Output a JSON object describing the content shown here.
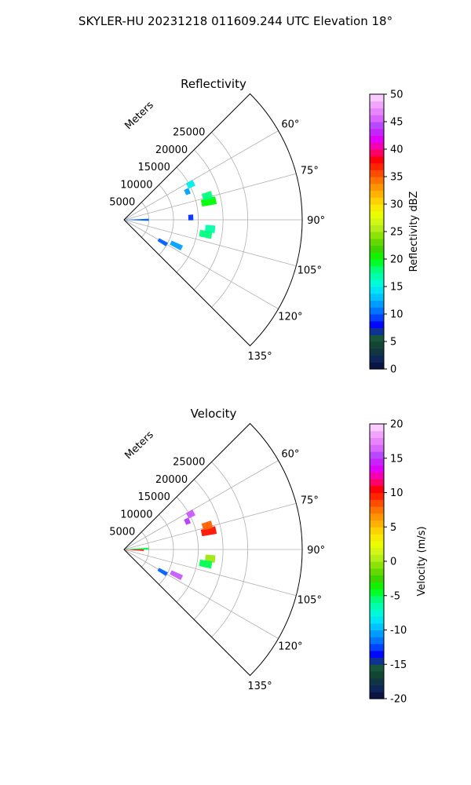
{
  "suptitle": "SKYLER-HU  20231218  011609.244 UTC Elevation 18°",
  "chart_data": [
    {
      "type": "polar-sector",
      "title": "Reflectivity",
      "radial_label": "Meters",
      "r_ticks": [
        "5000",
        "10000",
        "15000",
        "20000",
        "25000"
      ],
      "r_tick_values": [
        5000,
        10000,
        15000,
        20000,
        25000
      ],
      "rlim": [
        0,
        36000
      ],
      "theta_ticks": [
        "60°",
        "75°",
        "90°",
        "105°",
        "120°",
        "135°"
      ],
      "theta_tick_values": [
        60,
        75,
        90,
        105,
        120,
        135
      ],
      "thetalim": [
        45,
        135
      ],
      "grid": true,
      "colorbar": {
        "label": "Reflectivity dBZ",
        "ticks": [
          "0",
          "5",
          "10",
          "15",
          "20",
          "25",
          "30",
          "35",
          "40",
          "45",
          "50"
        ],
        "range": [
          0,
          50
        ]
      },
      "echoes": [
        {
          "az": 90,
          "r0": 0,
          "r1": 5000,
          "value": 10
        },
        {
          "az": 62,
          "r0": 14500,
          "r1": 16000,
          "value": 15
        },
        {
          "az": 66,
          "r0": 13500,
          "r1": 14500,
          "value": 12
        },
        {
          "az": 78,
          "r0": 16000,
          "r1": 19000,
          "value": 20
        },
        {
          "az": 74,
          "r0": 16500,
          "r1": 18500,
          "value": 18
        },
        {
          "az": 88,
          "r0": 13000,
          "r1": 14000,
          "value": 9
        },
        {
          "az": 96,
          "r0": 16500,
          "r1": 18500,
          "value": 17
        },
        {
          "az": 100,
          "r0": 15500,
          "r1": 18000,
          "value": 18
        },
        {
          "az": 116,
          "r0": 10500,
          "r1": 13000,
          "value": 12
        },
        {
          "az": 120,
          "r0": 8000,
          "r1": 10000,
          "value": 10
        }
      ]
    },
    {
      "type": "polar-sector",
      "title": "Velocity",
      "radial_label": "Meters",
      "r_ticks": [
        "5000",
        "10000",
        "15000",
        "20000",
        "25000"
      ],
      "r_tick_values": [
        5000,
        10000,
        15000,
        20000,
        25000
      ],
      "rlim": [
        0,
        36000
      ],
      "theta_ticks": [
        "60°",
        "75°",
        "90°",
        "105°",
        "120°",
        "135°"
      ],
      "theta_tick_values": [
        60,
        75,
        90,
        105,
        120,
        135
      ],
      "thetalim": [
        45,
        135
      ],
      "grid": true,
      "colorbar": {
        "label": "Velocity (m/s)",
        "ticks": [
          "-20",
          "-15",
          "-10",
          "-5",
          "0",
          "5",
          "10",
          "15",
          "20"
        ],
        "range": [
          -20,
          20
        ]
      },
      "echoes": [
        {
          "az": 88,
          "r0": 0,
          "r1": 5000,
          "value": -5
        },
        {
          "az": 92,
          "r0": 0,
          "r1": 4000,
          "value": 10
        },
        {
          "az": 62,
          "r0": 14500,
          "r1": 16000,
          "value": 16
        },
        {
          "az": 66,
          "r0": 13500,
          "r1": 14500,
          "value": 15
        },
        {
          "az": 78,
          "r0": 16000,
          "r1": 19000,
          "value": 10
        },
        {
          "az": 74,
          "r0": 16500,
          "r1": 18500,
          "value": 8
        },
        {
          "az": 96,
          "r0": 16500,
          "r1": 18500,
          "value": 0
        },
        {
          "az": 100,
          "r0": 15500,
          "r1": 18000,
          "value": -5
        },
        {
          "az": 116,
          "r0": 10500,
          "r1": 13000,
          "value": 16
        },
        {
          "az": 120,
          "r0": 8000,
          "r1": 10000,
          "value": -12
        }
      ]
    }
  ]
}
